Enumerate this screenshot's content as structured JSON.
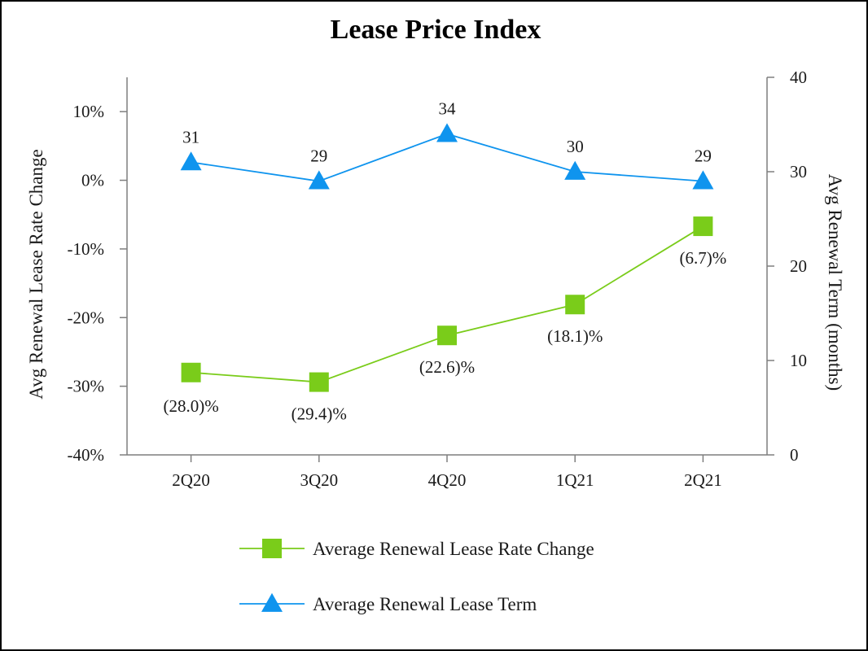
{
  "chart_data": {
    "type": "line",
    "title": "Lease Price Index",
    "categories": [
      "2Q20",
      "3Q20",
      "4Q20",
      "1Q21",
      "2Q21"
    ],
    "left_axis": {
      "label": "Avg Renewal Lease Rate Change",
      "range": [
        -40,
        15
      ],
      "ticks": [
        10,
        0,
        -10,
        -20,
        -30,
        -40
      ],
      "tick_labels": [
        "10%",
        "0%",
        "-10%",
        "-20%",
        "-30%",
        "-40%"
      ]
    },
    "right_axis": {
      "label": "Avg Renewal Term (months)",
      "range": [
        0,
        40
      ],
      "ticks": [
        40,
        30,
        20,
        10,
        0
      ],
      "tick_labels": [
        "40",
        "30",
        "20",
        "10",
        "0"
      ]
    },
    "grid": false,
    "legend": "bottom",
    "series": [
      {
        "name": "Average Renewal Lease Rate Change",
        "axis": "left",
        "marker": "square",
        "color": "#7ACC1A",
        "values": [
          -28.0,
          -29.4,
          -22.6,
          -18.1,
          -6.7
        ],
        "labels": [
          "(28.0)%",
          "(29.4)%",
          "(22.6)%",
          "(18.1)%",
          "(6.7)%"
        ]
      },
      {
        "name": "Average Renewal Lease Term",
        "axis": "right",
        "marker": "triangle",
        "color": "#0F94EE",
        "values": [
          31,
          29,
          34,
          30,
          29
        ],
        "labels": [
          "31",
          "29",
          "34",
          "30",
          "29"
        ]
      }
    ]
  }
}
